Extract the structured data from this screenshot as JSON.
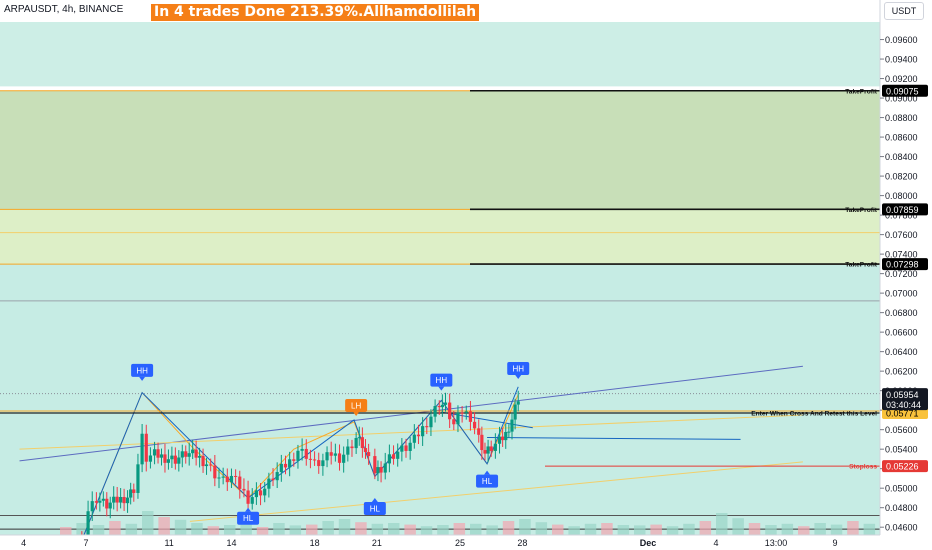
{
  "header": {
    "symbol_line": "ARPAUSDT, 4h, BINANCE",
    "banner": "In 4 trades Done 213.39%.Allhamdollilah",
    "unit": "USDT"
  },
  "colors": {
    "up": "#089981",
    "down": "#f23645",
    "pattern_line": "#1565c0",
    "zigzag": "#f9a825",
    "takeprofit_zone": "#c8dfb8",
    "takeprofit_zone_low": "#ddefc7",
    "entry_zone": "#c6ece4",
    "stoploss": "#e53935",
    "orange": "#f57f17",
    "label_blue": "#2962ff"
  },
  "chart_data": {
    "type": "candlestick",
    "ylim": [
      0.0452,
      0.0978
    ],
    "y_ticks": [
      "0.09600",
      "0.09400",
      "0.09200",
      "0.09000",
      "0.08800",
      "0.08600",
      "0.08400",
      "0.08200",
      "0.08000",
      "0.07800",
      "0.07600",
      "0.07400",
      "0.07200",
      "0.07000",
      "0.06800",
      "0.06600",
      "0.06400",
      "0.06200",
      "0.06000",
      "0.05800",
      "0.05600",
      "0.05400",
      "0.05200",
      "0.05000",
      "0.04800",
      "0.04600"
    ],
    "x_ticks": [
      {
        "label": "4",
        "day": 4
      },
      {
        "label": "7",
        "day": 7
      },
      {
        "label": "11",
        "day": 11
      },
      {
        "label": "14",
        "day": 14
      },
      {
        "label": "18",
        "day": 18
      },
      {
        "label": "21",
        "day": 21
      },
      {
        "label": "25",
        "day": 25
      },
      {
        "label": "28",
        "day": 28
      },
      {
        "label": "Dec",
        "day": 31
      },
      {
        "label": "4",
        "day": 35
      },
      {
        "label": "13:00",
        "day": 38
      },
      {
        "label": "9",
        "day": 40
      }
    ],
    "close_path": [
      [
        6.8,
        0.045
      ],
      [
        7.1,
        0.0478
      ],
      [
        7.5,
        0.049
      ],
      [
        8.0,
        0.0483
      ],
      [
        8.5,
        0.0488
      ],
      [
        9.0,
        0.0492
      ],
      [
        9.3,
        0.05
      ],
      [
        9.5,
        0.0525
      ],
      [
        9.7,
        0.0552
      ],
      [
        9.9,
        0.0531
      ],
      [
        10.3,
        0.0535
      ],
      [
        10.8,
        0.0532
      ],
      [
        11.3,
        0.053
      ],
      [
        11.8,
        0.0536
      ],
      [
        12.3,
        0.0534
      ],
      [
        12.8,
        0.0526
      ],
      [
        13.2,
        0.0515
      ],
      [
        13.6,
        0.0508
      ],
      [
        14.0,
        0.0512
      ],
      [
        14.4,
        0.0502
      ],
      [
        14.8,
        0.049
      ],
      [
        15.2,
        0.0495
      ],
      [
        15.6,
        0.05
      ],
      [
        16.0,
        0.0512
      ],
      [
        16.4,
        0.052
      ],
      [
        16.8,
        0.0528
      ],
      [
        17.2,
        0.054
      ],
      [
        17.6,
        0.0535
      ],
      [
        18.0,
        0.0525
      ],
      [
        18.4,
        0.0528
      ],
      [
        18.8,
        0.0536
      ],
      [
        19.2,
        0.0532
      ],
      [
        19.6,
        0.054
      ],
      [
        20.0,
        0.0552
      ],
      [
        20.3,
        0.0545
      ],
      [
        20.6,
        0.0528
      ],
      [
        20.9,
        0.0518
      ],
      [
        21.2,
        0.0522
      ],
      [
        21.6,
        0.0532
      ],
      [
        22.0,
        0.0538
      ],
      [
        22.4,
        0.0542
      ],
      [
        22.8,
        0.055
      ],
      [
        23.2,
        0.0562
      ],
      [
        23.6,
        0.0575
      ],
      [
        24.0,
        0.0588
      ],
      [
        24.3,
        0.0584
      ],
      [
        24.7,
        0.0565
      ],
      [
        25.1,
        0.058
      ],
      [
        25.5,
        0.0574
      ],
      [
        25.9,
        0.0552
      ],
      [
        26.2,
        0.0536
      ],
      [
        26.5,
        0.0542
      ],
      [
        26.9,
        0.0548
      ],
      [
        27.2,
        0.0556
      ],
      [
        27.5,
        0.0572
      ],
      [
        27.8,
        0.0594
      ]
    ],
    "volume": [
      0.2,
      0.3,
      0.25,
      0.35,
      0.28,
      0.6,
      0.45,
      0.38,
      0.3,
      0.22,
      0.25,
      0.28,
      0.2,
      0.3,
      0.24,
      0.26,
      0.35,
      0.4,
      0.32,
      0.28,
      0.3,
      0.26,
      0.22,
      0.25,
      0.3,
      0.28,
      0.24,
      0.35,
      0.4,
      0.32,
      0.26,
      0.22,
      0.28,
      0.3,
      0.25,
      0.24,
      0.26,
      0.22,
      0.28,
      0.35,
      0.55,
      0.42,
      0.3,
      0.25,
      0.28,
      0.22,
      0.3,
      0.26,
      0.35,
      0.28
    ],
    "current": {
      "price": "0.05954",
      "countdown": "03:40:44",
      "value": 0.05954
    },
    "levels": [
      {
        "name": "takeprofit-1",
        "label": "TakeProfit",
        "value": 0.09075,
        "text": "0.09075"
      },
      {
        "name": "takeprofit-2",
        "label": "TakeProfit",
        "value": 0.07859,
        "text": "0.07859"
      },
      {
        "name": "takeprofit-3",
        "label": "TakeProfit",
        "value": 0.07298,
        "text": "0.07298"
      },
      {
        "name": "entry",
        "label": "Enter When Cross And Retest this Level",
        "value": 0.05771,
        "text": "0.05771"
      },
      {
        "name": "stoploss",
        "label": "Stoploss",
        "value": 0.05226,
        "text": "0.05226"
      }
    ],
    "pivots": [
      {
        "label": "HH",
        "day": 9.7,
        "price": 0.061,
        "type": "high",
        "color": "#2962ff"
      },
      {
        "label": "HL",
        "day": 14.8,
        "price": 0.048,
        "type": "low",
        "color": "#2962ff"
      },
      {
        "label": "LH",
        "day": 20.0,
        "price": 0.0574,
        "type": "high",
        "color": "#f57f17"
      },
      {
        "label": "HL",
        "day": 20.9,
        "price": 0.049,
        "type": "low",
        "color": "#2962ff"
      },
      {
        "label": "HH",
        "day": 24.1,
        "price": 0.06,
        "type": "high",
        "color": "#2962ff"
      },
      {
        "label": "HL",
        "day": 26.3,
        "price": 0.0518,
        "type": "low",
        "color": "#2962ff"
      },
      {
        "label": "HH",
        "day": 27.8,
        "price": 0.0612,
        "type": "high",
        "color": "#2962ff"
      }
    ],
    "zigzag": [
      [
        6.9,
        0.0452
      ],
      [
        9.7,
        0.0598
      ],
      [
        12.2,
        0.054
      ],
      [
        14.8,
        0.049
      ],
      [
        17.0,
        0.054
      ],
      [
        19.9,
        0.0568
      ],
      [
        20.9,
        0.0512
      ],
      [
        24.1,
        0.059
      ],
      [
        26.3,
        0.0525
      ],
      [
        27.8,
        0.0596
      ]
    ],
    "trend_lines": [
      {
        "from": [
          3.8,
          0.0528
        ],
        "to": [
          41.5,
          0.0625
        ]
      },
      {
        "from": [
          3.8,
          0.054
        ],
        "to": [
          41.5,
          0.0575
        ]
      },
      {
        "from": [
          12.0,
          0.0466
        ],
        "to": [
          41.5,
          0.0527
        ]
      }
    ]
  }
}
